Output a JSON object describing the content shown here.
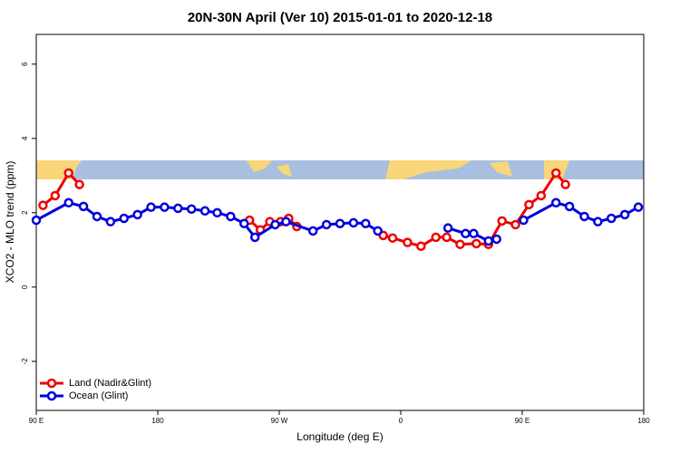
{
  "chart_data": {
    "type": "line",
    "title": "20N-30N April (Ver 10)   2015-01-01 to 2020-12-18",
    "x_label": "Longitude (deg E)",
    "y_label": "XCO2 - MLO trend (ppm)",
    "xlim": [
      90,
      540
    ],
    "ylim": [
      -3.32,
      6.8
    ],
    "xticks": [
      {
        "value": 90,
        "label": "90 E"
      },
      180,
      {
        "value": 270,
        "label": "90 W"
      },
      {
        "value": 360,
        "label": "0"
      },
      {
        "value": 450,
        "label": "90 E"
      },
      {
        "value": 540,
        "label": "180"
      }
    ],
    "yticks": [
      -2,
      0,
      2,
      4,
      6
    ],
    "legend": "bottom-left",
    "series": [
      {
        "name": "Land (Nadir&Glint)",
        "color": "#ee0000",
        "x": [
          95,
          104,
          114,
          122,
          null,
          248,
          256,
          263,
          271,
          277,
          283,
          null,
          347,
          354,
          365,
          375,
          386,
          394,
          404,
          416,
          425,
          435,
          445,
          455,
          464,
          475,
          482
        ],
        "values": [
          2.2,
          2.46,
          3.07,
          2.76,
          null,
          1.8,
          1.54,
          1.76,
          1.76,
          1.85,
          1.63,
          null,
          1.39,
          1.32,
          1.2,
          1.1,
          1.34,
          1.34,
          1.15,
          1.17,
          1.15,
          1.78,
          1.68,
          2.22,
          2.46,
          3.07,
          2.76
        ]
      },
      {
        "name": "Ocean (Glint)",
        "color": "#0000dd",
        "x": [
          90,
          114,
          125,
          135,
          145,
          155,
          165,
          175,
          185,
          195,
          205,
          215,
          224,
          234,
          244,
          252,
          267,
          275,
          295,
          305,
          315,
          325,
          334,
          343,
          null,
          395,
          408,
          414,
          425,
          431,
          null,
          451,
          475,
          485,
          496,
          506,
          516,
          526,
          536
        ],
        "values": [
          1.8,
          2.27,
          2.17,
          1.9,
          1.76,
          1.85,
          1.95,
          2.15,
          2.15,
          2.12,
          2.1,
          2.05,
          2.0,
          1.9,
          1.71,
          1.34,
          1.68,
          1.76,
          1.51,
          1.68,
          1.71,
          1.73,
          1.71,
          1.51,
          null,
          1.59,
          1.44,
          1.44,
          1.24,
          1.29,
          null,
          1.8,
          2.27,
          2.17,
          1.9,
          1.76,
          1.85,
          1.95,
          2.15
        ]
      }
    ]
  }
}
